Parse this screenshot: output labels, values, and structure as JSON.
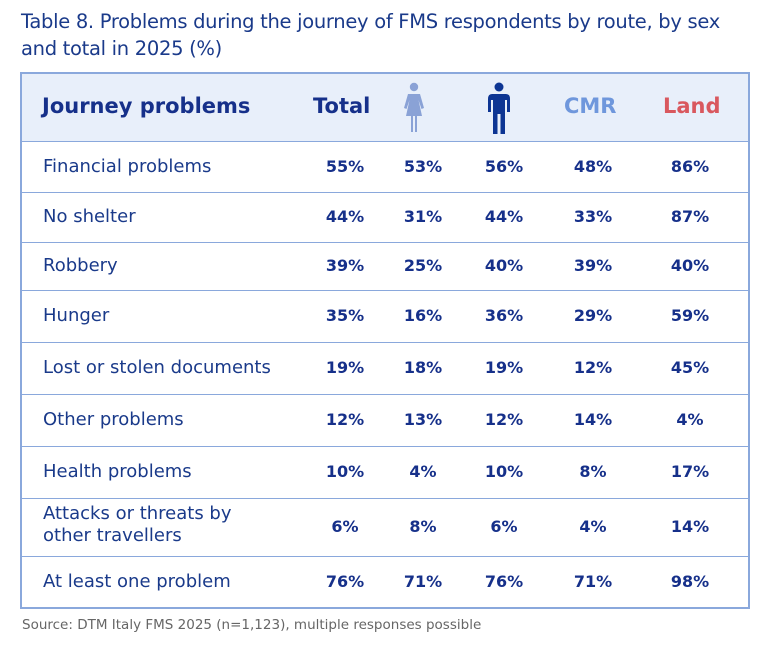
{
  "title": "Table 8. Problems during the journey of FMS respondents by route, by sex and total in 2025 (%)",
  "header": {
    "label": "Journey problems",
    "total": "Total",
    "female_icon": "female-icon",
    "male_icon": "male-icon",
    "cmr": "CMR",
    "land": "Land"
  },
  "colors": {
    "navy": "#16308a",
    "female": "#8aa2d6",
    "male": "#0d3593",
    "cmr": "#6f97dc",
    "land": "#d9585e",
    "border": "#8aa8dc",
    "header_bg": "#e8effa"
  },
  "rows": [
    {
      "label": "Financial problems",
      "total": "55%",
      "female": "53%",
      "male": "56%",
      "cmr": "48%",
      "land": "86%"
    },
    {
      "label": "No shelter",
      "total": "44%",
      "female": "31%",
      "male": "44%",
      "cmr": "33%",
      "land": "87%"
    },
    {
      "label": "Robbery",
      "total": "39%",
      "female": "25%",
      "male": "40%",
      "cmr": "39%",
      "land": "40%"
    },
    {
      "label": "Hunger",
      "total": "35%",
      "female": "16%",
      "male": "36%",
      "cmr": "29%",
      "land": "59%"
    },
    {
      "label": "Lost or stolen documents",
      "total": "19%",
      "female": "18%",
      "male": "19%",
      "cmr": "12%",
      "land": "45%"
    },
    {
      "label": "Other problems",
      "total": "12%",
      "female": "13%",
      "male": "12%",
      "cmr": "14%",
      "land": "4%"
    },
    {
      "label": "Health problems",
      "total": "10%",
      "female": "4%",
      "male": "10%",
      "cmr": "8%",
      "land": "17%"
    },
    {
      "label": "Attacks or threats by other travellers",
      "total": "6%",
      "female": "8%",
      "male": "6%",
      "cmr": "4%",
      "land": "14%"
    },
    {
      "label": "At least one problem",
      "total": "76%",
      "female": "71%",
      "male": "76%",
      "cmr": "71%",
      "land": "98%"
    }
  ],
  "source": "Source: DTM Italy FMS 2025 (n=1,123), multiple responses possible"
}
